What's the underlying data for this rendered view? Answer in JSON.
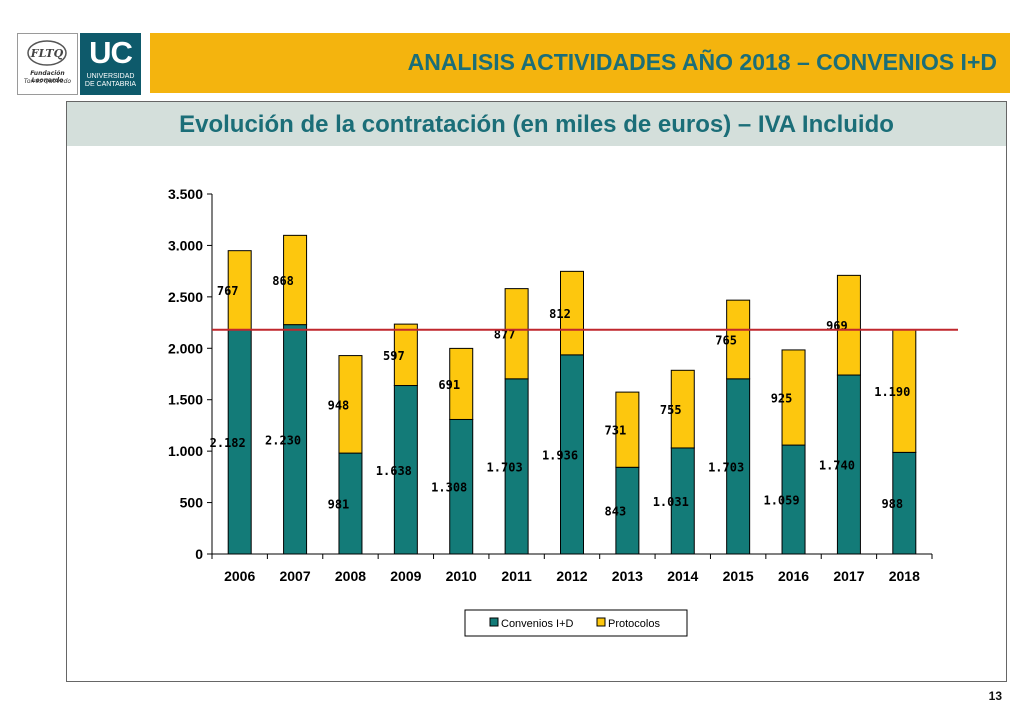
{
  "header": {
    "title": "ANALISIS ACTIVIDADES AÑO 2018 – CONVENIOS I+D",
    "banner_color": "#f4b40e",
    "title_color": "#1b6e78"
  },
  "logos": {
    "fltq": {
      "mark": "FLTQ",
      "line1": "Fundación Leonardo",
      "line2": "Torres Quevedo"
    },
    "uc": {
      "mark": "UC",
      "line1": "UNIVERSIDAD",
      "line2": "DE CANTABRIA",
      "color": "#0e5a6b"
    }
  },
  "subtitle": "Evolución de la contratación (en miles de euros) – IVA Incluido",
  "page_number": "13",
  "chart_data": {
    "type": "bar",
    "stacked": true,
    "categories": [
      "2006",
      "2007",
      "2008",
      "2009",
      "2010",
      "2011",
      "2012",
      "2013",
      "2014",
      "2015",
      "2016",
      "2017",
      "2018"
    ],
    "series": [
      {
        "name": "Convenios I+D",
        "color": "#137b78",
        "values": [
          2182,
          2230,
          981,
          1638,
          1308,
          1703,
          1936,
          843,
          1031,
          1703,
          1059,
          1740,
          988
        ],
        "labels": [
          "2.182",
          "2.230",
          "981",
          "1.638",
          "1.308",
          "1.703",
          "1.936",
          "843",
          "1.031",
          "1.703",
          "1.059",
          "1.740",
          "988"
        ]
      },
      {
        "name": "Protocolos",
        "color": "#fdc70e",
        "values": [
          767,
          868,
          948,
          597,
          691,
          877,
          812,
          731,
          755,
          765,
          925,
          969,
          1190
        ],
        "labels": [
          "767",
          "868",
          "948",
          "597",
          "691",
          "877",
          "812",
          "731",
          "755",
          "765",
          "925",
          "969",
          "1.190"
        ]
      }
    ],
    "yticks": [
      0,
      500,
      1000,
      1500,
      2000,
      2500,
      3000,
      3500
    ],
    "ytick_labels": [
      "0",
      "500",
      "1.000",
      "1.500",
      "2.000",
      "2.500",
      "3.000",
      "3.500"
    ],
    "ylim": [
      0,
      3500
    ],
    "reference_line": {
      "value": 2180,
      "color": "#c0272d"
    },
    "legend_position": "bottom",
    "xlabel": "",
    "ylabel": ""
  }
}
